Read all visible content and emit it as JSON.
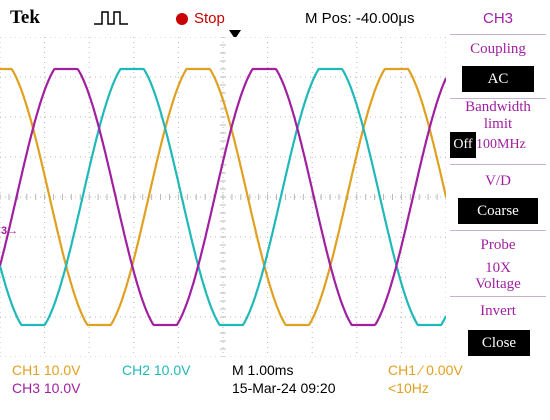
{
  "header": {
    "brand": "Tek",
    "trigger_icon": "trigger-pulse-icon",
    "run_state": "Stop",
    "m_pos": "M Pos: -40.00μs"
  },
  "side_menu": {
    "title": "CH3",
    "coupling_label": "Coupling",
    "coupling_value": "AC",
    "bandwidth_label_line1": "Bandwidth",
    "bandwidth_label_line2": "limit",
    "bandwidth_off": "Off",
    "bandwidth_option": "100MHz",
    "vd_label": "V/D",
    "vd_value": "Coarse",
    "probe_label": "Probe",
    "probe_value_line1": "10X",
    "probe_value_line2": "Voltage",
    "invert_label": "Invert",
    "invert_value": "Close"
  },
  "status": {
    "ch1": "CH1  10.0V",
    "ch2": "CH2  10.0V",
    "ch3": "CH3  10.0V",
    "timebase": "M 1.00ms",
    "datetime": "15-Mar-24 09:20",
    "trigger": "CH1  ∕  0.00V",
    "frequency": "<10Hz"
  },
  "screen": {
    "channel_marker": "3→"
  },
  "colors": {
    "ch1": "#e0a020",
    "ch2": "#20b8b8",
    "ch3": "#a020a0",
    "grid": "#b8b8b8"
  },
  "chart_data": {
    "type": "line",
    "x_divisions": 10,
    "y_divisions": 8,
    "series": [
      {
        "name": "CH1",
        "color": "#e0a020",
        "phase_deg": 90
      },
      {
        "name": "CH2",
        "color": "#20b8b8",
        "phase_deg": 210
      },
      {
        "name": "CH3",
        "color": "#a020a0",
        "phase_deg": 330
      }
    ],
    "cycles_visible": 2.25,
    "amplitude_divisions": 3.3
  }
}
